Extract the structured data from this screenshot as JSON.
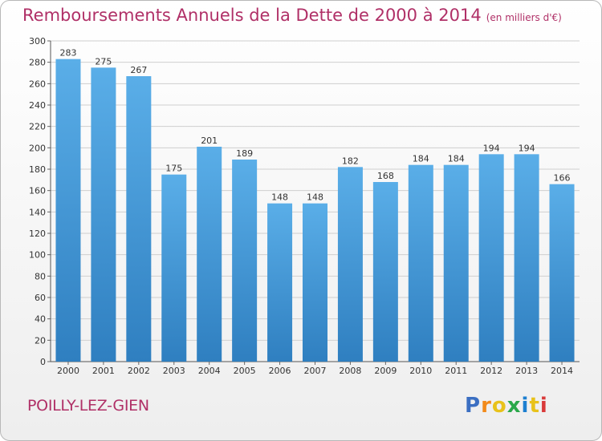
{
  "chart_data": {
    "type": "bar",
    "title": "Remboursements Annuels de la Dette de 2000 à 2014",
    "subtitle": "(en milliers d'€)",
    "categories": [
      "2000",
      "2001",
      "2002",
      "2003",
      "2004",
      "2005",
      "2006",
      "2007",
      "2008",
      "2009",
      "2010",
      "2011",
      "2012",
      "2013",
      "2014"
    ],
    "values": [
      283,
      275,
      267,
      175,
      201,
      189,
      148,
      148,
      182,
      168,
      184,
      184,
      194,
      194,
      166
    ],
    "ylim": [
      0,
      300
    ],
    "yticks": [
      0,
      20,
      40,
      60,
      80,
      100,
      120,
      140,
      160,
      180,
      200,
      220,
      240,
      260,
      280,
      300
    ],
    "grid": true,
    "bar_color": "#3a94d6"
  },
  "footer": {
    "town": "POILLY-LEZ-GIEN",
    "logo": [
      "P",
      "r",
      "o",
      "x",
      "i",
      "t",
      "i"
    ],
    "logo_colors": [
      "#3b6fc2",
      "#f28a1a",
      "#e8c21a",
      "#2aa84a",
      "#1d7fd0",
      "#e8c21a",
      "#d93a3a"
    ]
  }
}
